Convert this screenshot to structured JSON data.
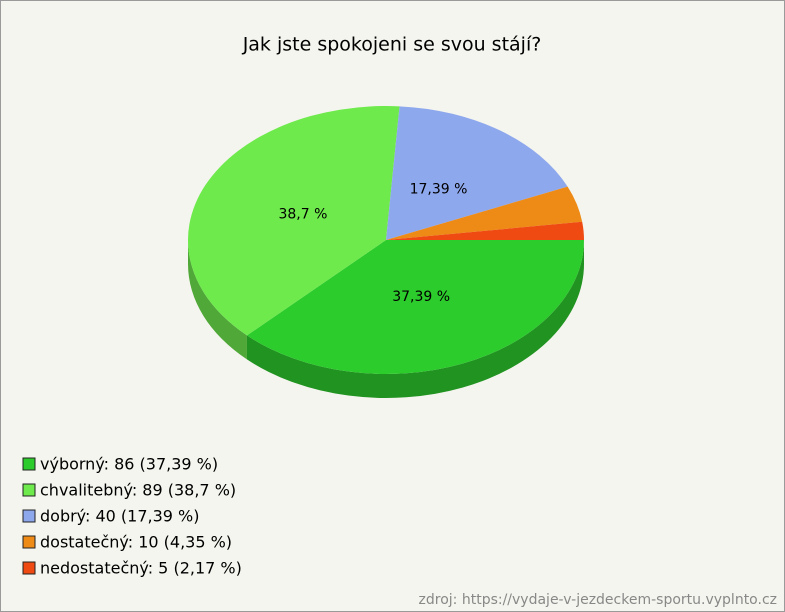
{
  "chart_data": {
    "type": "pie",
    "title": "Jak jste spokojeni se svou stájí?",
    "categories": [
      "výborný",
      "chvalitebný",
      "dobrý",
      "dostatečný",
      "nedostatečný"
    ],
    "values": [
      37.39,
      38.7,
      17.39,
      4.35,
      2.17
    ],
    "value_labels": [
      "37,39 %",
      "38,7 %",
      "17,39 %",
      null,
      null
    ],
    "colors": [
      "#2ccc2c",
      "#6eea4c",
      "#8ea8ee",
      "#ee8a16",
      "#ee4a12"
    ],
    "legend": [
      "výborný: 86 (37,39 %)",
      "chvalitebný: 89 (38,7 %)",
      "dobrý: 40 (17,39 %)",
      "dostatečný: 10 (4,35 %)",
      "nedostatečný: 5 (2,17 %)"
    ],
    "source": "zdroj: https://vydaje-v-jezdeckem-sportu.vyplnto.cz"
  }
}
